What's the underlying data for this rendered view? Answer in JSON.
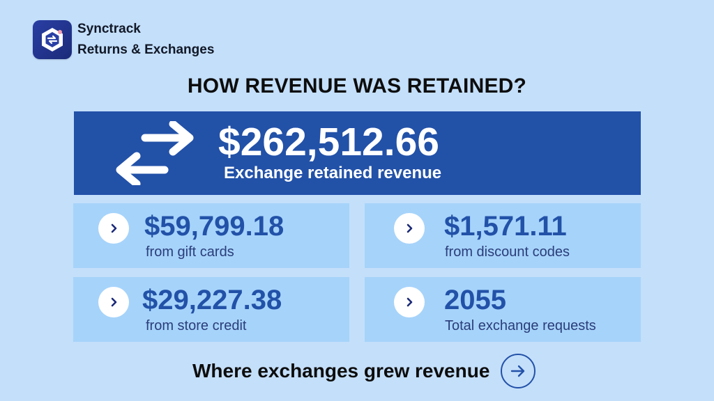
{
  "brand": {
    "name": "Synctrack",
    "product": "Returns & Exchanges"
  },
  "headline": "HOW REVENUE WAS RETAINED?",
  "hero": {
    "value": "$262,512.66",
    "label": "Exchange retained revenue",
    "icon": "exchange-arrows-icon"
  },
  "cards": [
    {
      "value": "$59,799.18",
      "label": "from gift cards",
      "icon": "chevron-right-icon"
    },
    {
      "value": "$1,571.11",
      "label": "from discount codes",
      "icon": "chevron-right-icon"
    },
    {
      "value": "$29,227.38",
      "label": "from store credit",
      "icon": "chevron-right-icon"
    },
    {
      "value": "2055",
      "label": "Total exchange requests",
      "icon": "chevron-right-icon"
    }
  ],
  "footer": {
    "text": "Where exchanges grew revenue",
    "icon": "arrow-right-icon"
  },
  "colors": {
    "background": "#c4dffa",
    "hero": "#2251a8",
    "card": "#a6d3fa",
    "accent": "#2251a8"
  }
}
